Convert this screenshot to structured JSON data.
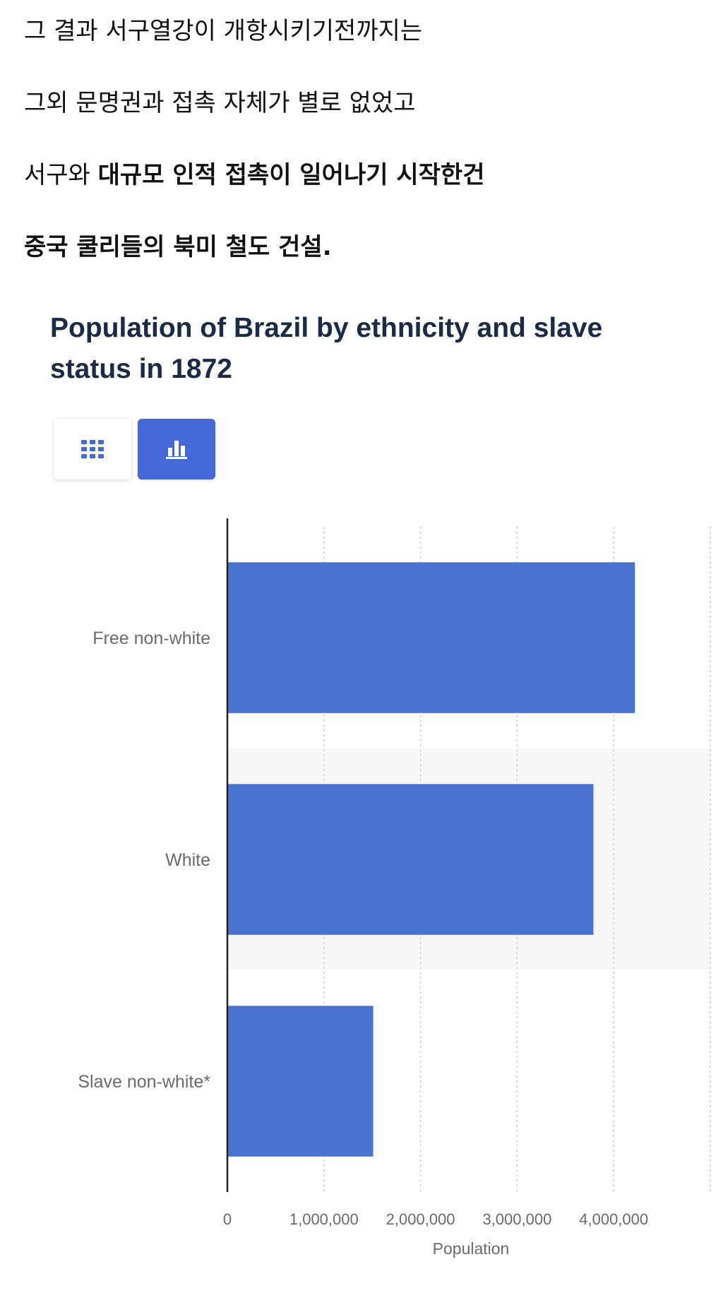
{
  "article": {
    "line1": "그 결과 서구열강이 개항시키기전까지는",
    "line2": "그외 문명권과 접촉 자체가 별로 없었고",
    "line3_regular": "서구와 ",
    "line3_bold": "대규모 인적 접촉이 일어나기 시작한건",
    "line4_bold": "중국 쿨리들의 북미 철도 건설."
  },
  "widget": {
    "table_icon": "grid-icon",
    "chart_icon": "bar-chart-icon",
    "active_view": "chart",
    "accent_color": "#4468d6"
  },
  "chart_data": {
    "type": "bar",
    "orientation": "horizontal",
    "title": "Population of Brazil by ethnicity and slave status in 1872",
    "categories": [
      "Free non-white",
      "White",
      "Slave non-white*"
    ],
    "values": [
      4220000,
      3790000,
      1510000
    ],
    "xlabel": "Population",
    "ylabel": "",
    "xlim": [
      0,
      5000000
    ],
    "xticks": [
      0,
      1000000,
      2000000,
      3000000,
      4000000
    ],
    "xtick_labels": [
      "0",
      "1,000,000",
      "2,000,000",
      "3,000,000",
      "4,000,000"
    ],
    "bar_color": "#4a72d1",
    "grid": true
  }
}
